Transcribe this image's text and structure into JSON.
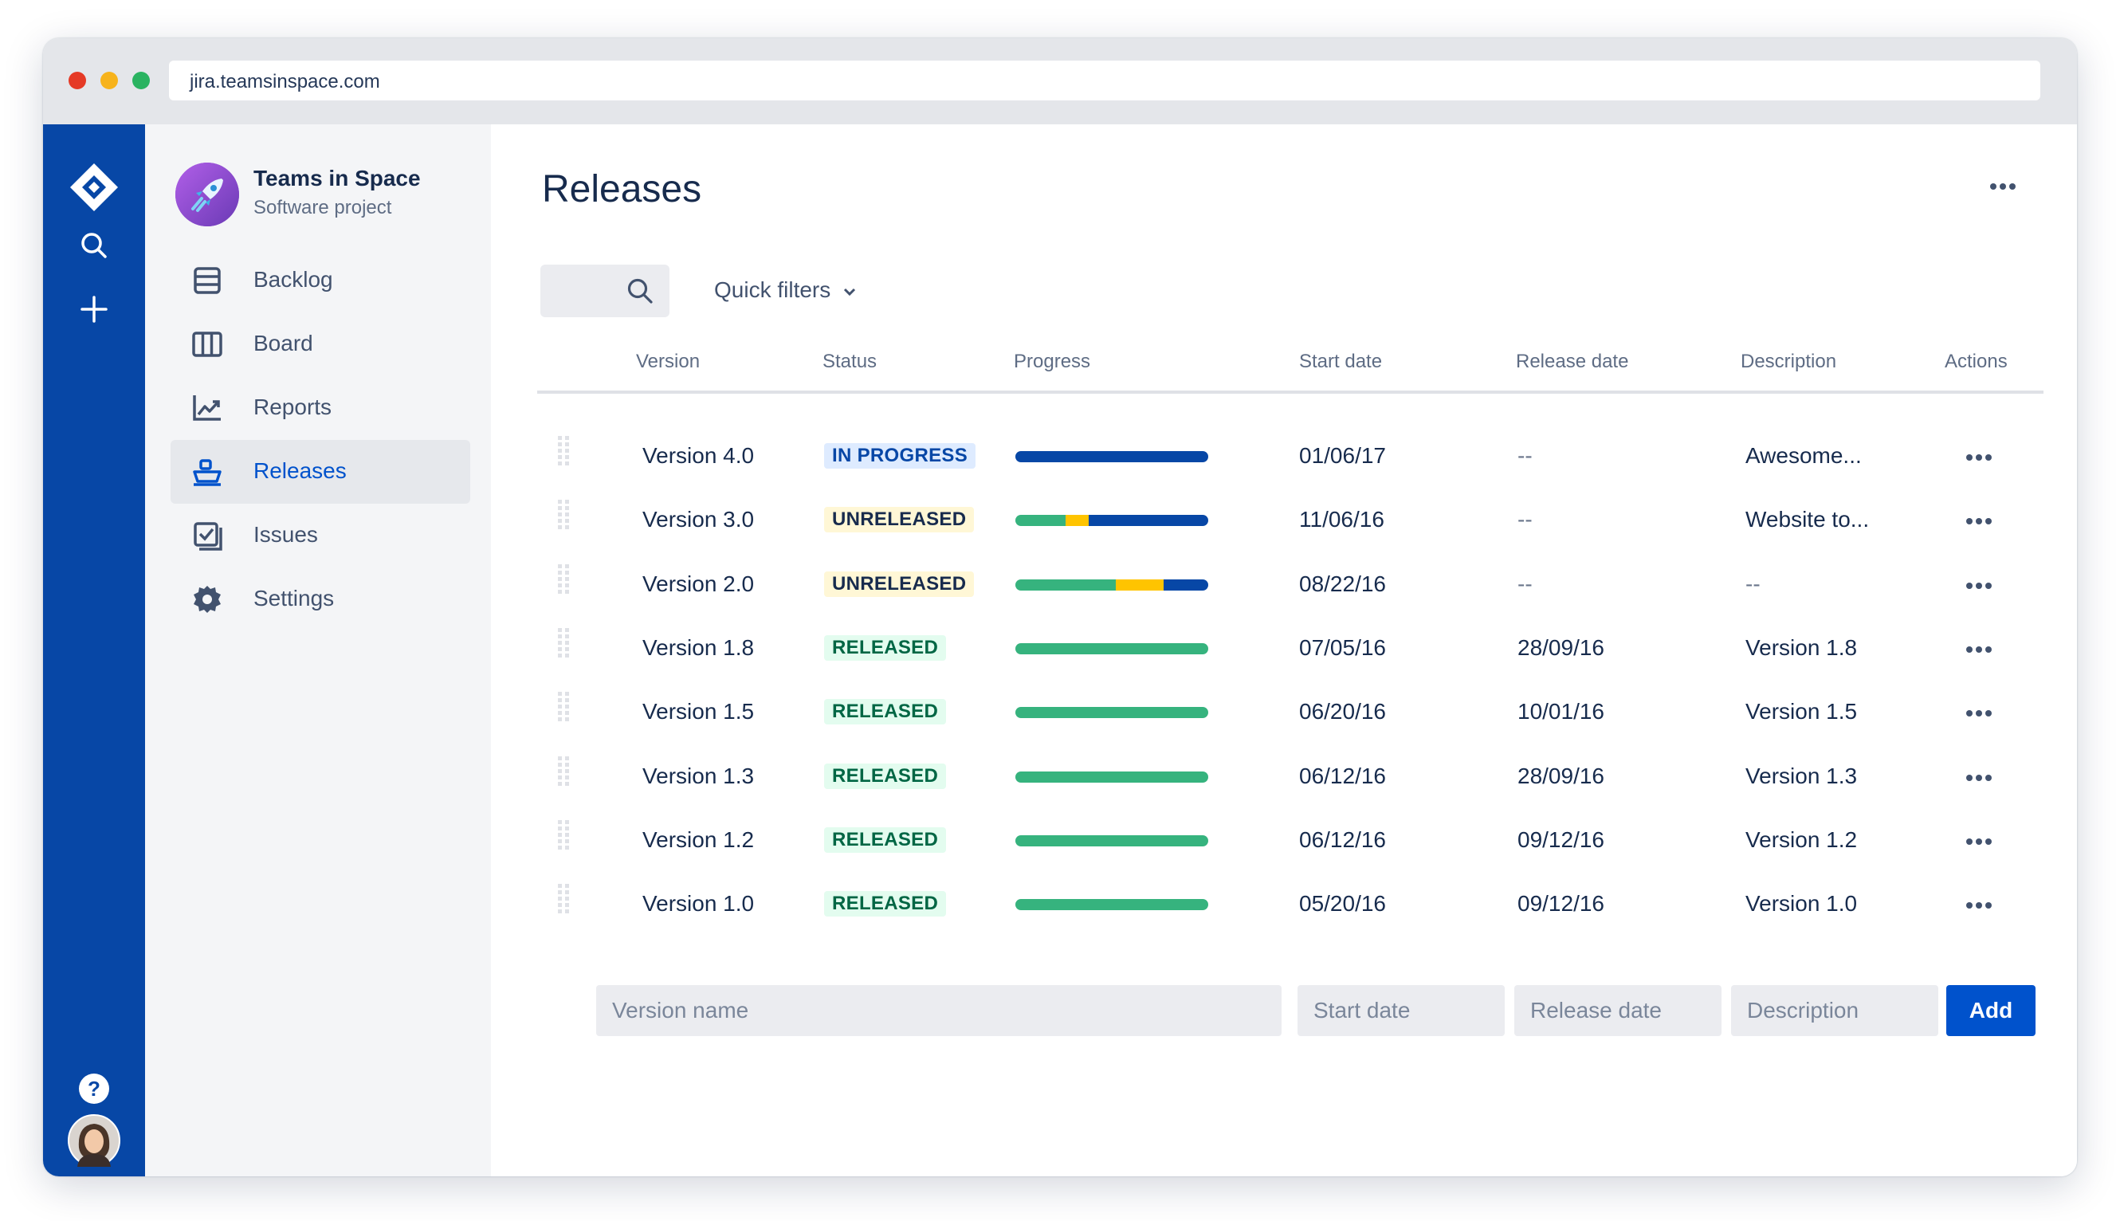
{
  "browser": {
    "url": "jira.teamsinspace.com"
  },
  "project": {
    "name": "Teams in Space",
    "type": "Software project"
  },
  "sidebar": {
    "items": [
      {
        "label": "Backlog",
        "icon": "backlog-icon"
      },
      {
        "label": "Board",
        "icon": "board-icon"
      },
      {
        "label": "Reports",
        "icon": "reports-icon"
      },
      {
        "label": "Releases",
        "icon": "releases-icon",
        "active": true
      },
      {
        "label": "Issues",
        "icon": "issues-icon"
      },
      {
        "label": "Settings",
        "icon": "settings-icon"
      }
    ]
  },
  "page": {
    "title": "Releases"
  },
  "filters": {
    "quick_filters_label": "Quick filters"
  },
  "table": {
    "headers": [
      "Version",
      "Status",
      "Progress",
      "Start date",
      "Release date",
      "Description",
      "Actions"
    ],
    "rows": [
      {
        "version": "Version 4.0",
        "status": "IN PROGRESS",
        "progress": {
          "done": 0,
          "in_progress": 0,
          "todo": 1
        },
        "start_date": "01/06/17",
        "release_date": "--",
        "description": "Awesome..."
      },
      {
        "version": "Version 3.0",
        "status": "UNRELEASED",
        "progress": {
          "done": 0.26,
          "in_progress": 0.12,
          "todo": 0.62
        },
        "start_date": "11/06/16",
        "release_date": "--",
        "description": "Website to..."
      },
      {
        "version": "Version 2.0",
        "status": "UNRELEASED",
        "progress": {
          "done": 0.52,
          "in_progress": 0.25,
          "todo": 0.23
        },
        "start_date": "08/22/16",
        "release_date": "--",
        "description": "--"
      },
      {
        "version": "Version 1.8",
        "status": "RELEASED",
        "progress": {
          "done": 1,
          "in_progress": 0,
          "todo": 0
        },
        "start_date": "07/05/16",
        "release_date": "28/09/16",
        "description": "Version 1.8"
      },
      {
        "version": "Version 1.5",
        "status": "RELEASED",
        "progress": {
          "done": 1,
          "in_progress": 0,
          "todo": 0
        },
        "start_date": "06/20/16",
        "release_date": "10/01/16",
        "description": "Version 1.5"
      },
      {
        "version": "Version 1.3",
        "status": "RELEASED",
        "progress": {
          "done": 1,
          "in_progress": 0,
          "todo": 0
        },
        "start_date": "06/12/16",
        "release_date": "28/09/16",
        "description": "Version 1.3"
      },
      {
        "version": "Version 1.2",
        "status": "RELEASED",
        "progress": {
          "done": 1,
          "in_progress": 0,
          "todo": 0
        },
        "start_date": "06/12/16",
        "release_date": "09/12/16",
        "description": "Version 1.2"
      },
      {
        "version": "Version 1.0",
        "status": "RELEASED",
        "progress": {
          "done": 1,
          "in_progress": 0,
          "todo": 0
        },
        "start_date": "05/20/16",
        "release_date": "09/12/16",
        "description": "Version 1.0"
      }
    ]
  },
  "form": {
    "version_placeholder": "Version name",
    "start_placeholder": "Start date",
    "release_placeholder": "Release date",
    "description_placeholder": "Description",
    "add_label": "Add"
  },
  "colors": {
    "global_nav": "#0747a6",
    "primary": "#0052cc",
    "progress_done": "#36b37e",
    "progress_in_progress": "#ffc400",
    "progress_todo": "#0747a6",
    "lozenge_in_progress_bg": "#deebff",
    "lozenge_in_progress_text": "#0747a6",
    "lozenge_unreleased_bg": "#fff7d6",
    "lozenge_unreleased_text": "#172b4d",
    "lozenge_released_bg": "#e3fcef",
    "lozenge_released_text": "#006644"
  }
}
